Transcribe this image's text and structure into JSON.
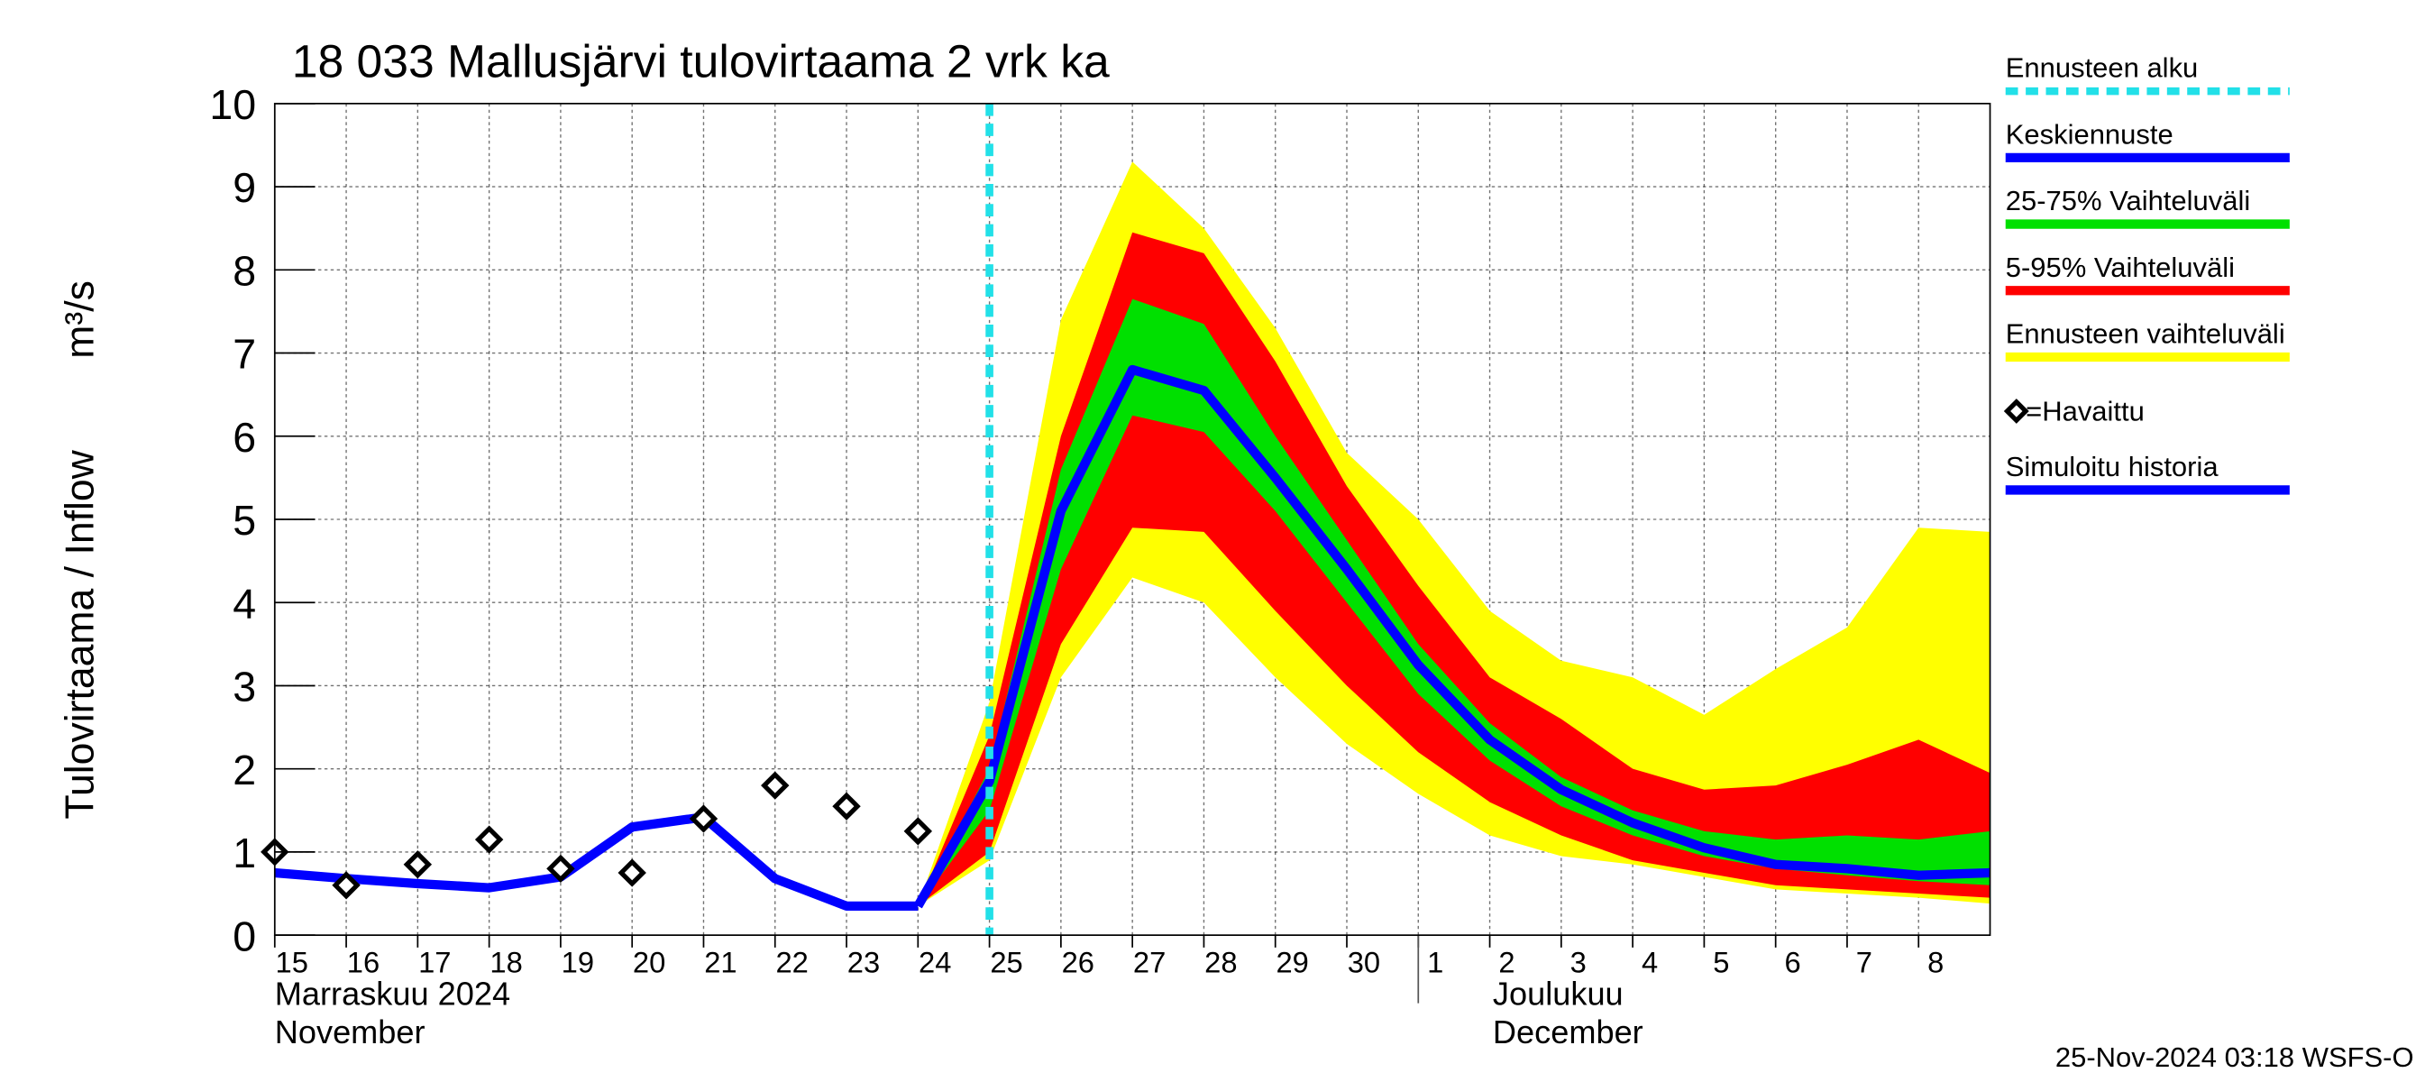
{
  "chart_data": {
    "type": "line",
    "title": "18 033 Mallusjärvi tulovirtaama 2 vrk ka",
    "y_label": "Tulovirtaama / Inflow",
    "y_unit": "m³/s",
    "x": [
      "2024-11-15",
      "2024-11-16",
      "2024-11-17",
      "2024-11-18",
      "2024-11-19",
      "2024-11-20",
      "2024-11-21",
      "2024-11-22",
      "2024-11-23",
      "2024-11-24",
      "2024-11-25",
      "2024-11-26",
      "2024-11-27",
      "2024-11-28",
      "2024-11-29",
      "2024-11-30",
      "2024-12-01",
      "2024-12-02",
      "2024-12-03",
      "2024-12-04",
      "2024-12-05",
      "2024-12-06",
      "2024-12-07",
      "2024-12-08",
      "2024-12-09"
    ],
    "xlim": [
      "2024-11-15",
      "2024-12-09"
    ],
    "xticks": [
      {
        "value": "2024-11-15",
        "label": "15"
      },
      {
        "value": "2024-11-16",
        "label": "16"
      },
      {
        "value": "2024-11-17",
        "label": "17"
      },
      {
        "value": "2024-11-18",
        "label": "18"
      },
      {
        "value": "2024-11-19",
        "label": "19"
      },
      {
        "value": "2024-11-20",
        "label": "20"
      },
      {
        "value": "2024-11-21",
        "label": "21"
      },
      {
        "value": "2024-11-22",
        "label": "22"
      },
      {
        "value": "2024-11-23",
        "label": "23"
      },
      {
        "value": "2024-11-24",
        "label": "24"
      },
      {
        "value": "2024-11-25",
        "label": "25"
      },
      {
        "value": "2024-11-26",
        "label": "26"
      },
      {
        "value": "2024-11-27",
        "label": "27"
      },
      {
        "value": "2024-11-28",
        "label": "28"
      },
      {
        "value": "2024-11-29",
        "label": "29"
      },
      {
        "value": "2024-11-30",
        "label": "30"
      },
      {
        "value": "2024-12-01",
        "label": "1"
      },
      {
        "value": "2024-12-02",
        "label": "2"
      },
      {
        "value": "2024-12-03",
        "label": "3"
      },
      {
        "value": "2024-12-04",
        "label": "4"
      },
      {
        "value": "2024-12-05",
        "label": "5"
      },
      {
        "value": "2024-12-06",
        "label": "6"
      },
      {
        "value": "2024-12-07",
        "label": "7"
      },
      {
        "value": "2024-12-08",
        "label": "8"
      }
    ],
    "months": [
      {
        "start": "2024-11-15",
        "label": "Marraskuu 2024",
        "label_en": "November"
      },
      {
        "start": "2024-12-01",
        "label": "Joulukuu",
        "label_en": "December"
      }
    ],
    "ylim": [
      0,
      10
    ],
    "yticks": [
      0,
      1,
      2,
      3,
      4,
      5,
      6,
      7,
      8,
      9,
      10
    ],
    "grid": true,
    "forecast_start": {
      "x": "2024-11-25",
      "name": "Ennusteen alku",
      "color": "#22e0e8"
    },
    "series": [
      {
        "name": "Ennusteen vaihteluväli",
        "type": "band",
        "color": "#ffff00",
        "upper": [
          null,
          null,
          null,
          null,
          null,
          null,
          null,
          null,
          null,
          0.35,
          2.8,
          7.4,
          9.3,
          8.5,
          7.3,
          5.8,
          5.0,
          3.9,
          3.3,
          3.1,
          2.65,
          3.2,
          3.7,
          4.9,
          4.85
        ],
        "lower": [
          null,
          null,
          null,
          null,
          null,
          null,
          null,
          null,
          null,
          0.35,
          0.9,
          3.1,
          4.3,
          4.0,
          3.1,
          2.3,
          1.7,
          1.2,
          0.95,
          0.85,
          0.7,
          0.55,
          0.5,
          0.45,
          0.38
        ]
      },
      {
        "name": "5-95% Vaihteluväli",
        "type": "band",
        "color": "#ff0000",
        "upper": [
          null,
          null,
          null,
          null,
          null,
          null,
          null,
          null,
          null,
          0.35,
          2.4,
          6.0,
          8.45,
          8.2,
          6.9,
          5.4,
          4.2,
          3.1,
          2.6,
          2.0,
          1.75,
          1.8,
          2.05,
          2.35,
          1.95
        ],
        "lower": [
          null,
          null,
          null,
          null,
          null,
          null,
          null,
          null,
          null,
          0.35,
          1.0,
          3.5,
          4.9,
          4.85,
          3.9,
          3.0,
          2.2,
          1.6,
          1.2,
          0.9,
          0.75,
          0.6,
          0.55,
          0.5,
          0.45
        ]
      },
      {
        "name": "25-75% Vaihteluväli",
        "type": "band",
        "color": "#00e000",
        "upper": [
          null,
          null,
          null,
          null,
          null,
          null,
          null,
          null,
          null,
          0.35,
          2.0,
          5.6,
          7.65,
          7.35,
          6.0,
          4.75,
          3.5,
          2.55,
          1.9,
          1.5,
          1.25,
          1.15,
          1.2,
          1.15,
          1.25
        ],
        "lower": [
          null,
          null,
          null,
          null,
          null,
          null,
          null,
          null,
          null,
          0.35,
          1.5,
          4.4,
          6.25,
          6.05,
          5.1,
          4.0,
          2.9,
          2.1,
          1.55,
          1.2,
          0.95,
          0.8,
          0.72,
          0.65,
          0.6
        ]
      },
      {
        "name": "Keskiennuste",
        "type": "line",
        "color": "#0000ff",
        "values": [
          null,
          null,
          null,
          null,
          null,
          null,
          null,
          null,
          null,
          0.35,
          1.85,
          5.1,
          6.8,
          6.55,
          5.5,
          4.4,
          3.25,
          2.35,
          1.75,
          1.35,
          1.05,
          0.85,
          0.8,
          0.72,
          0.75
        ]
      },
      {
        "name": "Simuloitu historia",
        "type": "line",
        "color": "#0000ff",
        "values": [
          0.75,
          0.68,
          0.62,
          0.57,
          0.7,
          1.3,
          1.42,
          0.68,
          0.35,
          0.35,
          null,
          null,
          null,
          null,
          null,
          null,
          null,
          null,
          null,
          null,
          null,
          null,
          null,
          null,
          null
        ]
      },
      {
        "name": "=Havaittu",
        "type": "marker",
        "color": "#000000",
        "values": [
          1.0,
          0.6,
          0.85,
          1.15,
          0.8,
          0.75,
          1.4,
          1.8,
          1.55,
          1.25,
          null,
          null,
          null,
          null,
          null,
          null,
          null,
          null,
          null,
          null,
          null,
          null,
          null,
          null,
          null
        ]
      }
    ],
    "footer": "25-Nov-2024 03:18 WSFS-O"
  }
}
